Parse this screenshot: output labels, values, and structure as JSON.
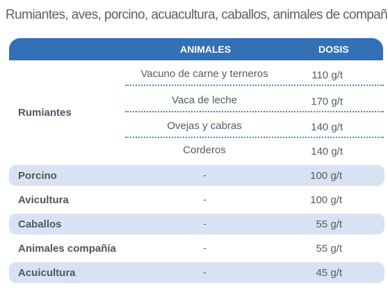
{
  "title": "Rumiantes, aves, porcino, acuacultura, caballos, animales de compañía.",
  "header": {
    "animales": "ANIMALES",
    "dosis": "DOSIS"
  },
  "rumiantes": {
    "label": "Rumiantes",
    "items": [
      {
        "name": "Vacuno de carne y terneros",
        "dose": "110 g/t"
      },
      {
        "name": "Vaca de leche",
        "dose": "170 g/t"
      },
      {
        "name": "Ovejas y cabras",
        "dose": "140 g/t"
      },
      {
        "name": "Corderos",
        "dose": "140 g/t"
      }
    ]
  },
  "rows": [
    {
      "category": "Porcino",
      "animal": "-",
      "dose": "100 g/t"
    },
    {
      "category": "Avicultura",
      "animal": "-",
      "dose": "100 g/t"
    },
    {
      "category": "Caballos",
      "animal": "-",
      "dose": "55 g/t"
    },
    {
      "category": "Animales compañía",
      "animal": "-",
      "dose": "55 g/t"
    },
    {
      "category": "Acuicultura",
      "animal": "-",
      "dose": "45 g/t"
    }
  ],
  "colors": {
    "header": "#3470b6",
    "shaded_row": "#d9e2f3",
    "dotted_rule": "#4a82c3"
  }
}
